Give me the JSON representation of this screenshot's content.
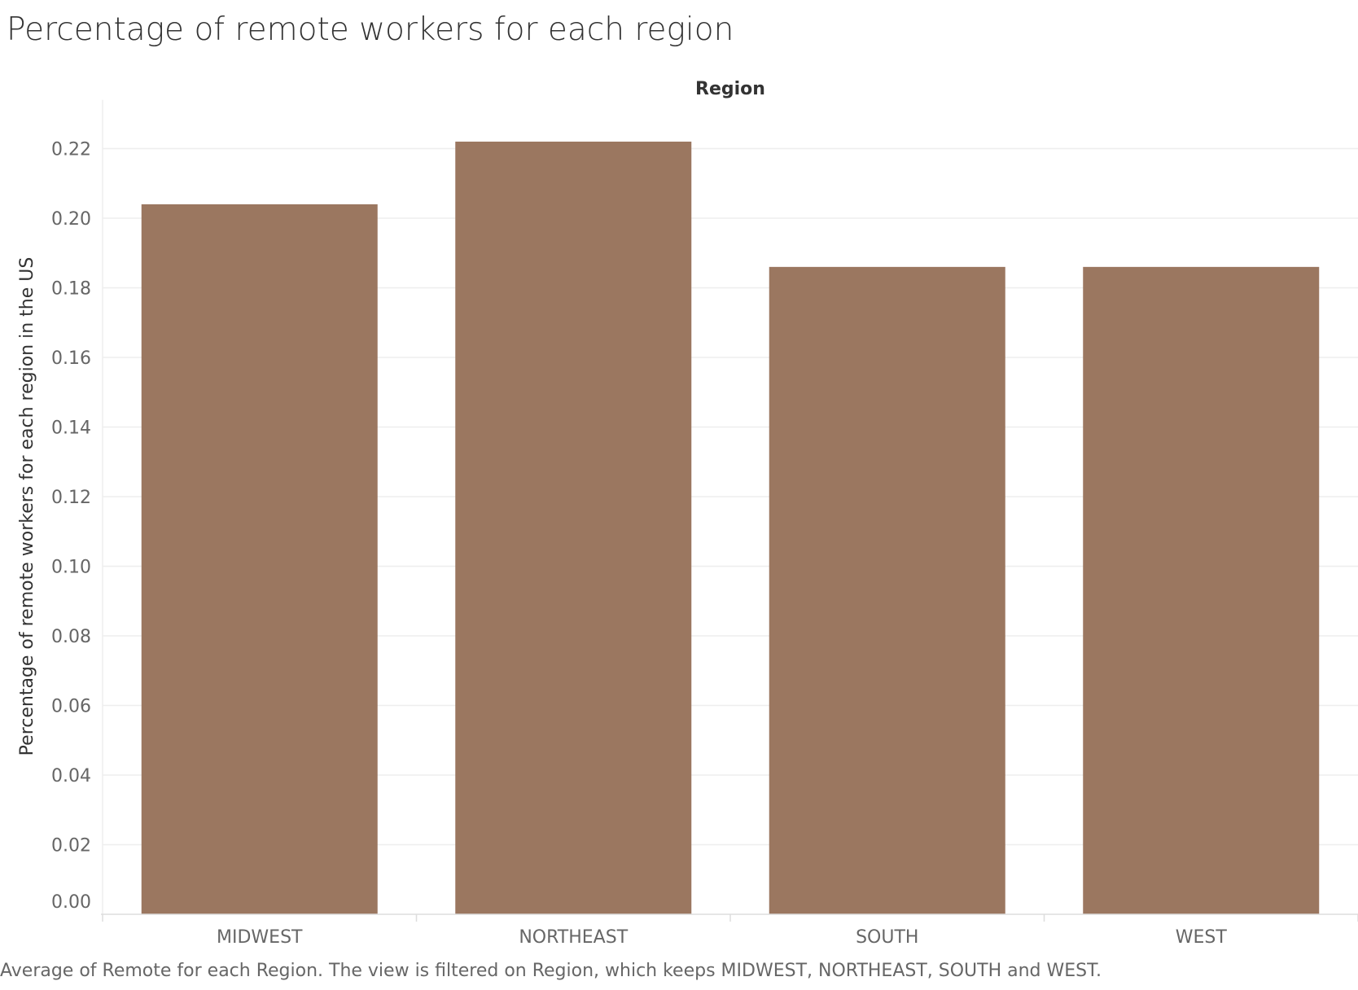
{
  "title": "Percentage of remote workers for each region",
  "caption": "Average of Remote for each Region. The view is filtered on Region, which keeps MIDWEST, NORTHEAST, SOUTH and WEST.",
  "colors": {
    "bar": "#9b7760",
    "grid": "#eeeeee",
    "axis": "#dddddd"
  },
  "chart_data": {
    "type": "bar",
    "title": "Percentage of remote workers for each region",
    "column_header": "Region",
    "xlabel": "",
    "ylabel": "Percentage of remote workers for each region in the US",
    "categories": [
      "MIDWEST",
      "NORTHEAST",
      "SOUTH",
      "WEST"
    ],
    "values": [
      0.204,
      0.222,
      0.186,
      0.186
    ],
    "ylim": [
      0,
      0.234
    ],
    "yticks": [
      0.0,
      0.02,
      0.04,
      0.06,
      0.08,
      0.1,
      0.12,
      0.14,
      0.16,
      0.18,
      0.2,
      0.22
    ],
    "ytick_labels": [
      "0.00",
      "0.02",
      "0.04",
      "0.06",
      "0.08",
      "0.10",
      "0.12",
      "0.14",
      "0.16",
      "0.18",
      "0.20",
      "0.22"
    ],
    "grid": true,
    "legend": "none"
  }
}
